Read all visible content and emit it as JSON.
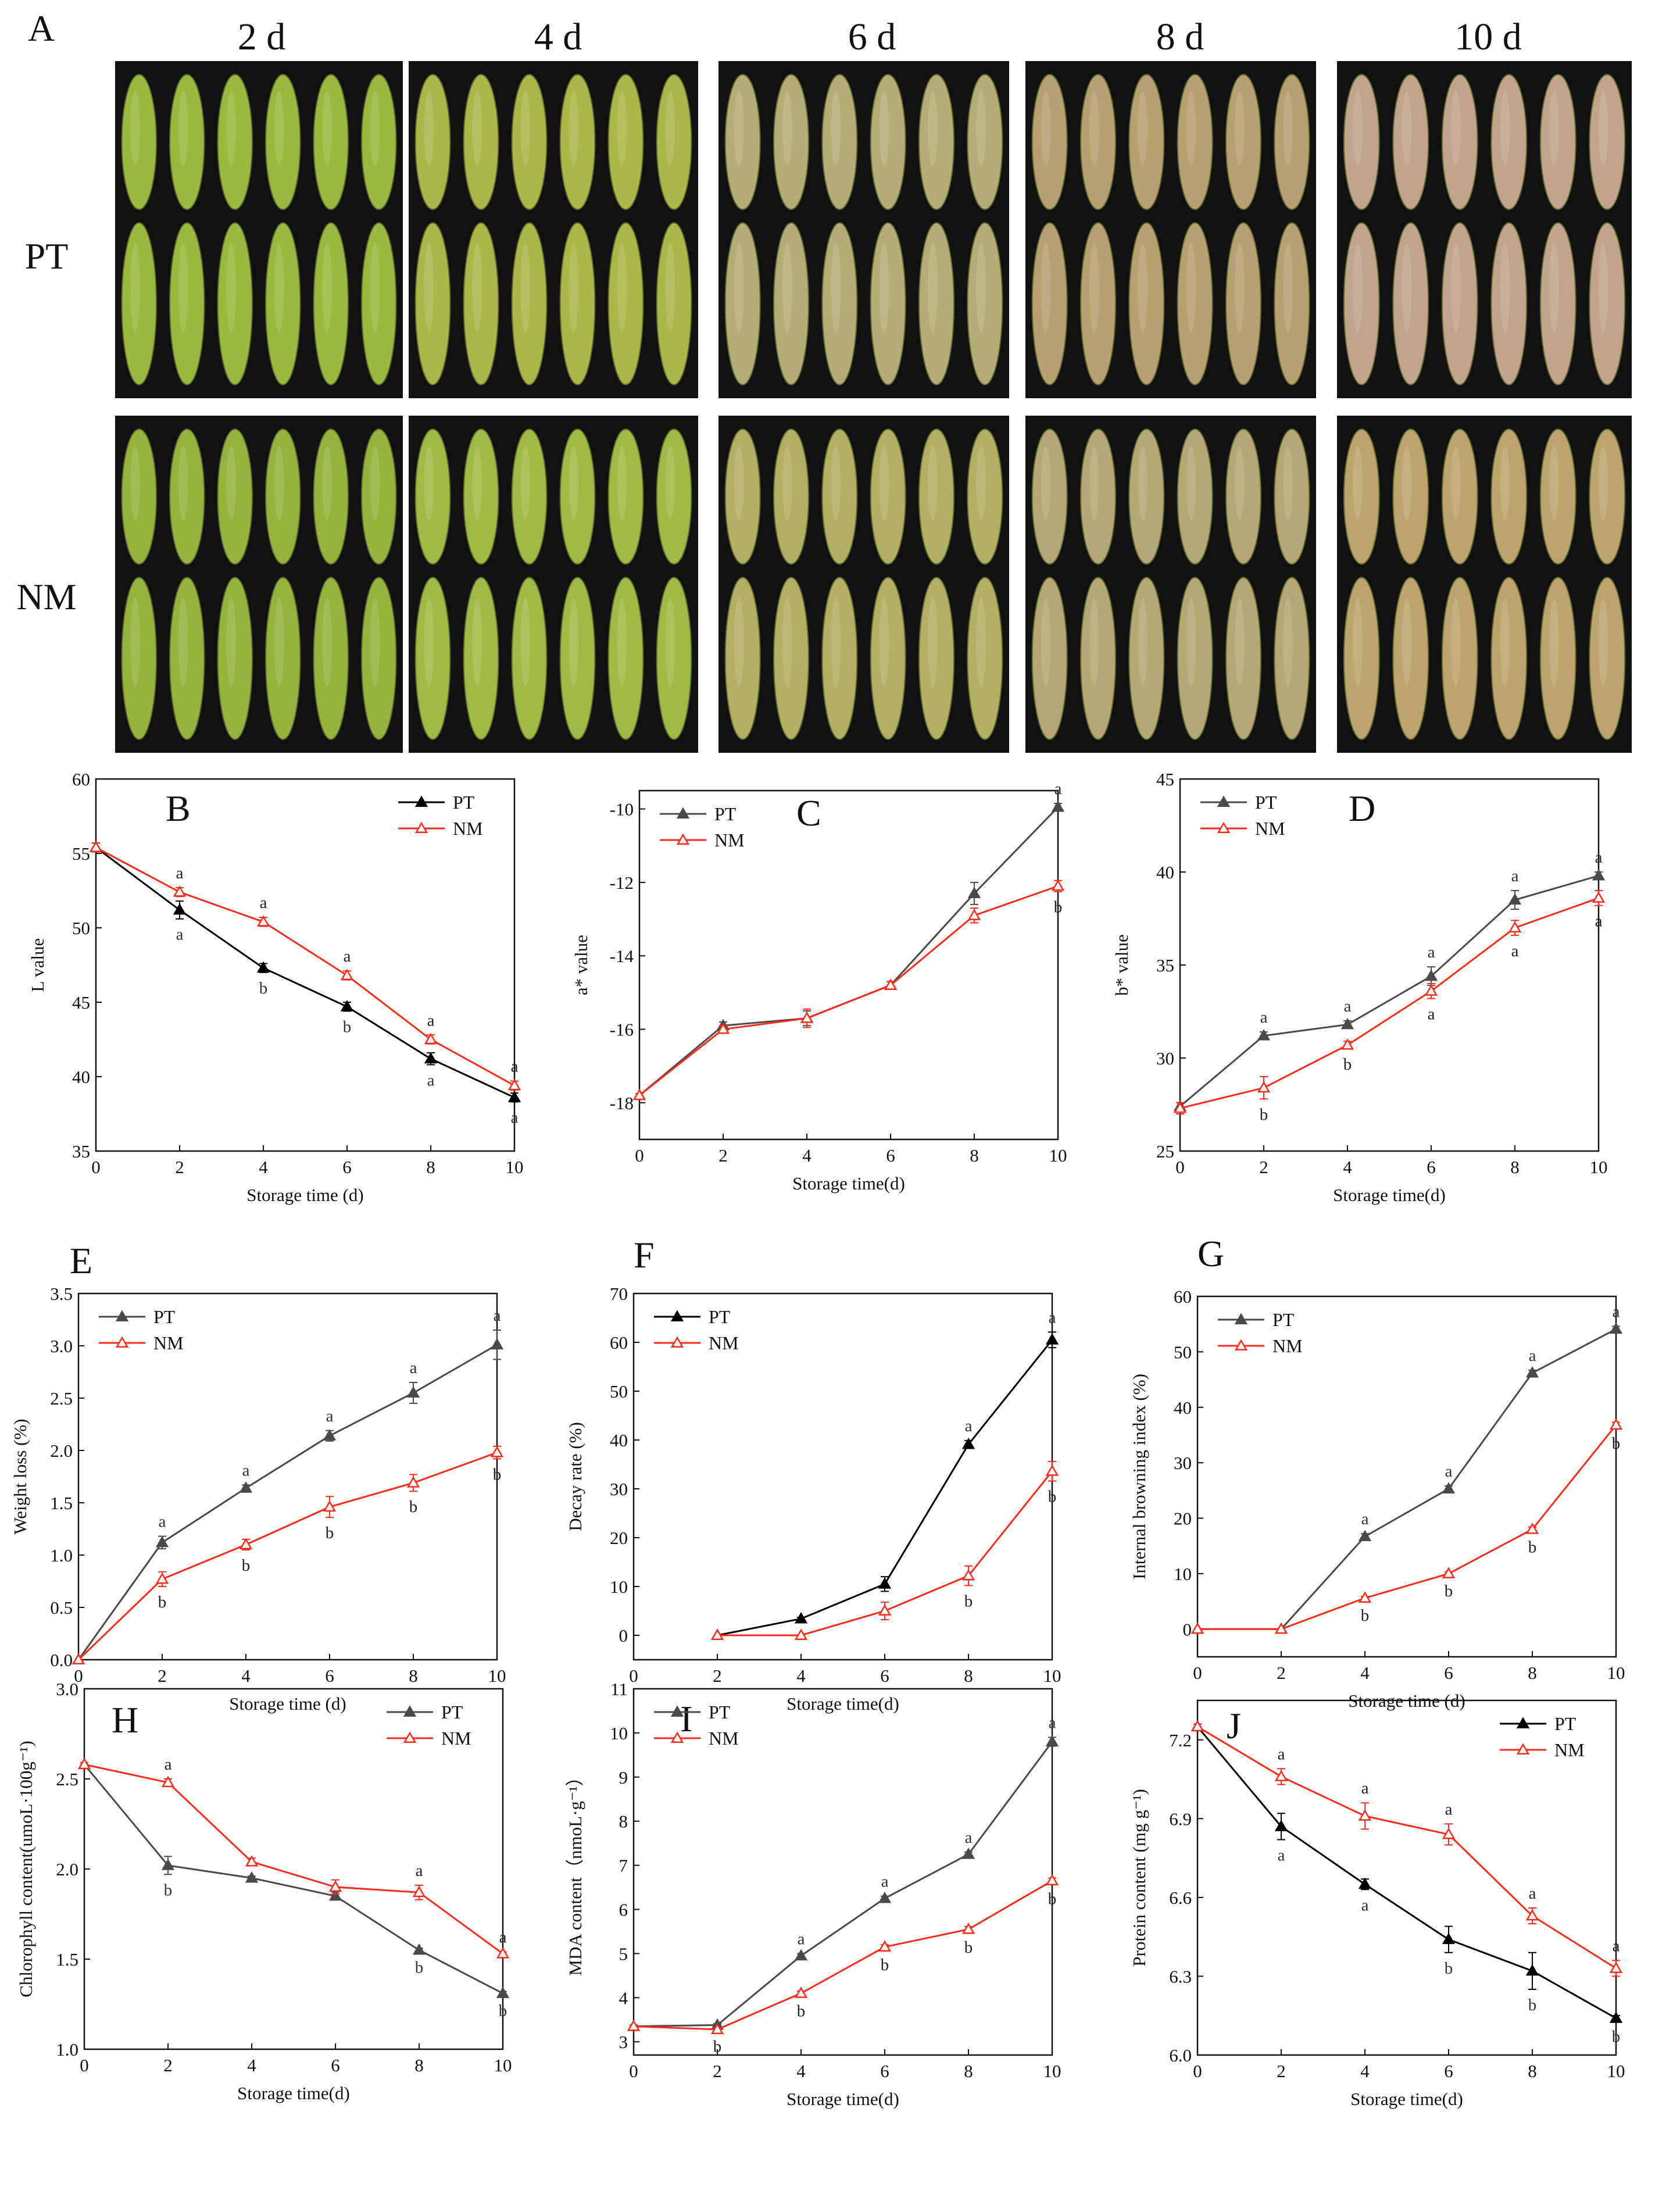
{
  "photo_panel": {
    "letter": "A",
    "days": [
      "2 d",
      "4 d",
      "6 d",
      "8 d",
      "10 d"
    ],
    "rows": [
      "PT",
      "NM"
    ],
    "tile_colors": {
      "PT": [
        "#9ab93f",
        "#aab84a",
        "#b5ad78",
        "#b7a173",
        "#c2a48c"
      ],
      "NM": [
        "#94b43e",
        "#a0bb45",
        "#b3b065",
        "#b5a776",
        "#bda46e"
      ]
    },
    "background": "#111111"
  },
  "colors": {
    "PT_main": "#4a4a4a",
    "PT_dark": "#000000",
    "NM": "#ff2a1a",
    "text": "#111111"
  },
  "chart_data": [
    {
      "panel": "B",
      "type": "line",
      "xlabel": "Storage time (d)",
      "ylabel": "L value",
      "xlim": [
        0,
        10
      ],
      "ylim": [
        35,
        60
      ],
      "xticks": [
        "0",
        "2",
        "4",
        "6",
        "8",
        "10"
      ],
      "yticks": [
        "35",
        "40",
        "45",
        "50",
        "55",
        "60"
      ],
      "legend": "top-right",
      "series": [
        {
          "name": "PT",
          "color": "#000000",
          "marker": "triangle-filled",
          "x": [
            0,
            2,
            4,
            6,
            8,
            10
          ],
          "values": [
            55.4,
            51.2,
            47.3,
            44.7,
            41.2,
            38.6
          ],
          "err": [
            0.3,
            0.6,
            0.3,
            0.3,
            0.4,
            0.3
          ],
          "labels": [
            "",
            "a",
            "b",
            "b",
            "a",
            "a"
          ]
        },
        {
          "name": "NM",
          "color": "#ff2a1a",
          "marker": "triangle-open",
          "x": [
            0,
            2,
            4,
            6,
            8,
            10
          ],
          "values": [
            55.4,
            52.4,
            50.4,
            46.8,
            42.5,
            39.4
          ],
          "err": [
            0.3,
            0.3,
            0.3,
            0.3,
            0.3,
            0.3
          ],
          "labels": [
            "",
            "a",
            "a",
            "a",
            "a",
            "a"
          ]
        }
      ]
    },
    {
      "panel": "C",
      "type": "line",
      "xlabel": "Storage time(d)",
      "ylabel": "a* value",
      "xlim": [
        0,
        10
      ],
      "ylim": [
        -19,
        -9.5
      ],
      "xticks": [
        "0",
        "2",
        "4",
        "6",
        "8",
        "10"
      ],
      "yticks": [
        "-18",
        "-16",
        "-14",
        "-12",
        "-10"
      ],
      "legend": "top-left",
      "series": [
        {
          "name": "PT",
          "color": "#4a4a4a",
          "marker": "triangle-filled",
          "x": [
            0,
            2,
            4,
            6,
            8,
            10
          ],
          "values": [
            -17.8,
            -15.9,
            -15.7,
            -14.8,
            -12.3,
            -9.95
          ],
          "err": [
            0.05,
            0.1,
            0.2,
            0.1,
            0.3,
            0.1
          ],
          "labels": [
            "",
            "",
            "",
            "",
            "",
            "a"
          ]
        },
        {
          "name": "NM",
          "color": "#ff2a1a",
          "marker": "triangle-open",
          "x": [
            0,
            2,
            4,
            6,
            8,
            10
          ],
          "values": [
            -17.8,
            -16.0,
            -15.7,
            -14.8,
            -12.9,
            -12.1
          ],
          "err": [
            0.05,
            0.1,
            0.25,
            0.1,
            0.2,
            0.15
          ],
          "labels": [
            "",
            "",
            "",
            "",
            "",
            "b"
          ]
        }
      ]
    },
    {
      "panel": "D",
      "type": "line",
      "xlabel": "Storage time(d)",
      "ylabel": "b* value",
      "xlim": [
        0,
        10
      ],
      "ylim": [
        25,
        45
      ],
      "xticks": [
        "0",
        "2",
        "4",
        "6",
        "8",
        "10"
      ],
      "yticks": [
        "25",
        "30",
        "35",
        "40",
        "45"
      ],
      "legend": "top-left",
      "series": [
        {
          "name": "PT",
          "color": "#4a4a4a",
          "marker": "triangle-filled",
          "x": [
            0,
            2,
            4,
            6,
            8,
            10
          ],
          "values": [
            27.4,
            31.2,
            31.8,
            34.4,
            38.5,
            39.8
          ],
          "err": [
            0.2,
            0.2,
            0.2,
            0.5,
            0.5,
            0.2
          ],
          "labels": [
            "",
            "a",
            "a",
            "a",
            "a",
            "a"
          ]
        },
        {
          "name": "NM",
          "color": "#ff2a1a",
          "marker": "triangle-open",
          "x": [
            0,
            2,
            4,
            6,
            8,
            10
          ],
          "values": [
            27.3,
            28.4,
            30.7,
            33.6,
            37.0,
            38.6
          ],
          "err": [
            0.3,
            0.6,
            0.2,
            0.4,
            0.4,
            0.4
          ],
          "labels": [
            "",
            "b",
            "b",
            "a",
            "a",
            "a"
          ]
        }
      ]
    },
    {
      "panel": "E",
      "type": "line",
      "xlabel": "Storage time (d)",
      "ylabel": "Weight loss (%)",
      "xlim": [
        0,
        10
      ],
      "ylim": [
        0,
        3.5
      ],
      "xticks": [
        "0",
        "2",
        "4",
        "6",
        "8",
        "10"
      ],
      "yticks": [
        "0.0",
        "0.5",
        "1.0",
        "1.5",
        "2.0",
        "2.5",
        "3.0",
        "3.5"
      ],
      "legend": "top-left",
      "series": [
        {
          "name": "PT",
          "color": "#4a4a4a",
          "marker": "triangle-filled",
          "x": [
            0,
            2,
            4,
            6,
            8,
            10
          ],
          "values": [
            0,
            1.12,
            1.64,
            2.14,
            2.55,
            3.01
          ],
          "err": [
            0,
            0.06,
            0.03,
            0.05,
            0.1,
            0.14
          ],
          "labels": [
            "",
            "a",
            "a",
            "a",
            "a",
            "a"
          ]
        },
        {
          "name": "NM",
          "color": "#ff2a1a",
          "marker": "triangle-open",
          "x": [
            0,
            2,
            4,
            6,
            8,
            10
          ],
          "values": [
            0,
            0.77,
            1.1,
            1.46,
            1.69,
            1.98
          ],
          "err": [
            0,
            0.07,
            0.05,
            0.1,
            0.08,
            0.06
          ],
          "labels": [
            "",
            "b",
            "b",
            "b",
            "b",
            "b"
          ]
        }
      ]
    },
    {
      "panel": "F",
      "type": "line",
      "xlabel": "Storage time(d)",
      "ylabel": "Decay rate (%)",
      "xlim": [
        0,
        10
      ],
      "ylim": [
        -5,
        70
      ],
      "xticks": [
        "0",
        "2",
        "4",
        "6",
        "8",
        "10"
      ],
      "yticks": [
        "0",
        "10",
        "20",
        "30",
        "40",
        "50",
        "60",
        "70"
      ],
      "legend": "top-left",
      "series": [
        {
          "name": "PT",
          "color": "#000000",
          "marker": "triangle-filled",
          "x": [
            2,
            4,
            6,
            8,
            10
          ],
          "values": [
            0,
            3.4,
            10.5,
            39.1,
            60.5
          ],
          "err": [
            0,
            0.3,
            1.5,
            0.8,
            1.6
          ],
          "labels": [
            "",
            "",
            "",
            "a",
            "a"
          ]
        },
        {
          "name": "NM",
          "color": "#ff2a1a",
          "marker": "triangle-open",
          "x": [
            2,
            4,
            6,
            8,
            10
          ],
          "values": [
            0,
            0,
            5.0,
            12.2,
            33.6
          ],
          "err": [
            0,
            0,
            1.8,
            2.0,
            2.0
          ],
          "labels": [
            "",
            "",
            "",
            "b",
            "b"
          ]
        }
      ]
    },
    {
      "panel": "G",
      "type": "line",
      "xlabel": "Storage time (d)",
      "ylabel": "Internal browning index (%)",
      "xlim": [
        0,
        10
      ],
      "ylim": [
        -5,
        60
      ],
      "xticks": [
        "0",
        "2",
        "4",
        "6",
        "8",
        "10"
      ],
      "yticks": [
        "0",
        "10",
        "20",
        "30",
        "40",
        "50",
        "60"
      ],
      "legend": "top-left",
      "series": [
        {
          "name": "PT",
          "color": "#4a4a4a",
          "marker": "triangle-filled",
          "x": [
            0,
            2,
            4,
            6,
            8,
            10
          ],
          "values": [
            0,
            0,
            16.7,
            25.3,
            46.2,
            54.1
          ],
          "err": [
            0,
            0,
            0.5,
            0.5,
            0.5,
            0.5
          ],
          "labels": [
            "",
            "",
            "a",
            "a",
            "a",
            "a"
          ]
        },
        {
          "name": "NM",
          "color": "#ff2a1a",
          "marker": "triangle-open",
          "x": [
            0,
            2,
            4,
            6,
            8,
            10
          ],
          "values": [
            0,
            0,
            5.6,
            10.0,
            18.0,
            36.8
          ],
          "err": [
            0,
            0,
            0.3,
            0.3,
            0.4,
            0.5
          ],
          "labels": [
            "",
            "",
            "b",
            "b",
            "b",
            "b"
          ]
        }
      ]
    },
    {
      "panel": "H",
      "type": "line",
      "xlabel": "Storage time(d)",
      "ylabel": "Chlorophyll content(umoL·100g⁻¹)",
      "xlim": [
        0,
        10
      ],
      "ylim": [
        1.0,
        3.0
      ],
      "xticks": [
        "0",
        "2",
        "4",
        "6",
        "8",
        "10"
      ],
      "yticks": [
        "1.0",
        "1.5",
        "2.0",
        "2.5",
        "3.0"
      ],
      "legend": "top-right",
      "series": [
        {
          "name": "PT",
          "color": "#4a4a4a",
          "marker": "triangle-filled",
          "x": [
            0,
            2,
            4,
            6,
            8,
            10
          ],
          "values": [
            2.58,
            2.02,
            1.95,
            1.85,
            1.55,
            1.31
          ],
          "err": [
            0.01,
            0.05,
            0.01,
            0.02,
            0.01,
            0.01
          ],
          "labels": [
            "",
            "b",
            "",
            "",
            "b",
            "b"
          ]
        },
        {
          "name": "NM",
          "color": "#ff2a1a",
          "marker": "triangle-open",
          "x": [
            0,
            2,
            4,
            6,
            8,
            10
          ],
          "values": [
            2.58,
            2.48,
            2.04,
            1.9,
            1.87,
            1.53
          ],
          "err": [
            0.01,
            0.02,
            0.02,
            0.04,
            0.04,
            0.01
          ],
          "labels": [
            "",
            "a",
            "",
            "",
            "a",
            "a"
          ]
        }
      ]
    },
    {
      "panel": "I",
      "type": "line",
      "xlabel": "Storage time(d)",
      "ylabel": "MDA content（nmoL·g⁻¹）",
      "xlim": [
        0,
        10
      ],
      "ylim": [
        2.7,
        11
      ],
      "xticks": [
        "0",
        "2",
        "4",
        "6",
        "8",
        "10"
      ],
      "yticks": [
        "3",
        "4",
        "5",
        "6",
        "7",
        "8",
        "9",
        "10",
        "11"
      ],
      "legend": "top-left",
      "series": [
        {
          "name": "PT",
          "color": "#4a4a4a",
          "marker": "triangle-filled",
          "x": [
            0,
            2,
            4,
            6,
            8,
            10
          ],
          "values": [
            3.35,
            3.38,
            4.95,
            6.25,
            7.25,
            9.8
          ],
          "err": [
            0.03,
            0.03,
            0.05,
            0.05,
            0.05,
            0.1
          ],
          "labels": [
            "",
            "",
            "a",
            "a",
            "a",
            "a"
          ]
        },
        {
          "name": "NM",
          "color": "#ff2a1a",
          "marker": "triangle-open",
          "x": [
            0,
            2,
            4,
            6,
            8,
            10
          ],
          "values": [
            3.35,
            3.28,
            4.1,
            5.15,
            5.55,
            6.65
          ],
          "err": [
            0.03,
            0.03,
            0.05,
            0.05,
            0.06,
            0.06
          ],
          "labels": [
            "",
            "b",
            "b",
            "b",
            "b",
            "b"
          ]
        }
      ]
    },
    {
      "panel": "J",
      "type": "line",
      "xlabel": "Storage time(d)",
      "ylabel": "Protein content (mg g⁻¹)",
      "xlim": [
        0,
        10
      ],
      "ylim": [
        6.0,
        7.35
      ],
      "xticks": [
        "0",
        "2",
        "4",
        "6",
        "8",
        "10"
      ],
      "yticks": [
        "6.0",
        "6.3",
        "6.6",
        "6.9",
        "7.2"
      ],
      "legend": "top-right",
      "series": [
        {
          "name": "PT",
          "color": "#000000",
          "marker": "triangle-filled",
          "x": [
            0,
            2,
            4,
            6,
            8,
            10
          ],
          "values": [
            7.25,
            6.87,
            6.65,
            6.44,
            6.32,
            6.14
          ],
          "err": [
            0.01,
            0.05,
            0.02,
            0.05,
            0.07,
            0.01
          ],
          "labels": [
            "",
            "a",
            "a",
            "b",
            "b",
            "b"
          ]
        },
        {
          "name": "NM",
          "color": "#ff2a1a",
          "marker": "triangle-open",
          "x": [
            0,
            2,
            4,
            6,
            8,
            10
          ],
          "values": [
            7.25,
            7.06,
            6.91,
            6.84,
            6.53,
            6.33
          ],
          "err": [
            0.01,
            0.03,
            0.05,
            0.04,
            0.03,
            0.03
          ],
          "labels": [
            "",
            "a",
            "a",
            "a",
            "a",
            "a"
          ]
        }
      ]
    }
  ]
}
